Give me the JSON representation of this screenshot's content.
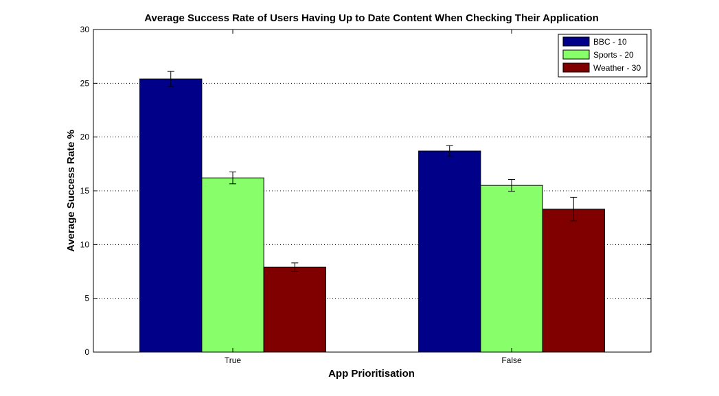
{
  "chart_data": {
    "type": "bar",
    "title": "Average Success Rate of Users Having Up to Date Content When Checking Their Application",
    "xlabel": "App Prioritisation",
    "ylabel": "Average Success Rate %",
    "categories": [
      "True",
      "False"
    ],
    "ylim": [
      0,
      30
    ],
    "yticks": [
      0,
      5,
      10,
      15,
      20,
      25,
      30
    ],
    "grid": "y-dotted",
    "legend_position": "top-right",
    "series": [
      {
        "name": "BBC - 10",
        "color": "#000088",
        "values": [
          25.4,
          18.7
        ],
        "errors": [
          0.7,
          0.5
        ]
      },
      {
        "name": "Sports - 20",
        "color": "#88ff6a",
        "values": [
          16.2,
          15.5
        ],
        "errors": [
          0.55,
          0.55
        ]
      },
      {
        "name": "Weather - 30",
        "color": "#800000",
        "values": [
          7.9,
          13.3
        ],
        "errors": [
          0.4,
          1.1
        ]
      }
    ]
  }
}
